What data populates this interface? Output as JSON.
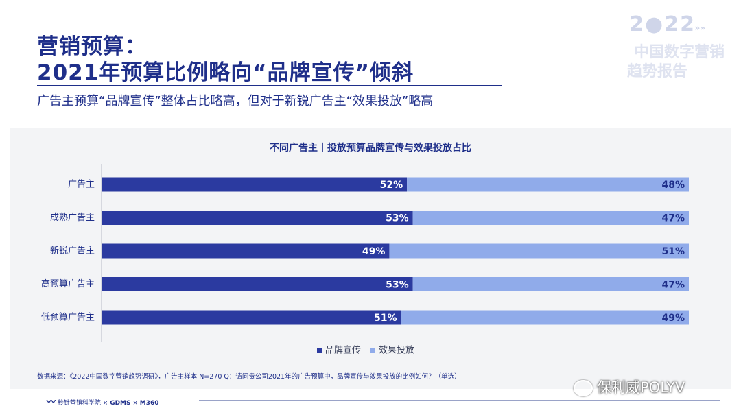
{
  "header": {
    "title_line1": "营销预算：",
    "title_line2": "2021年预算比例略向“品牌宣传”倾斜",
    "subtitle": "广告主预算“品牌宣传”整体占比略高，但对于新锐广告主“效果投放”略高"
  },
  "brand": {
    "year": "2●22",
    "arrow": "»»",
    "line1": "中国数字营销",
    "line2": "趋势报告"
  },
  "colors": {
    "brand": "#2b3aa0",
    "effect": "#90abea",
    "text": "#1f2f8a"
  },
  "chart_data": {
    "type": "bar",
    "title": "不同广告主丨投放预算品牌宣传与效果投放占比",
    "categories": [
      "广告主",
      "成熟广告主",
      "新锐广告主",
      "高预算广告主",
      "低预算广告主"
    ],
    "series": [
      {
        "name": "品牌宣传",
        "values": [
          52,
          53,
          49,
          53,
          51
        ],
        "labels": [
          "52%",
          "53%",
          "49%",
          "53%",
          "51%"
        ]
      },
      {
        "name": "效果投放",
        "values": [
          48,
          47,
          51,
          47,
          49
        ],
        "labels": [
          "48%",
          "47%",
          "51%",
          "47%",
          "49%"
        ]
      }
    ],
    "stacked": true,
    "orientation": "horizontal",
    "xlim": [
      0,
      100
    ],
    "legend": "bottom-center"
  },
  "source": "数据来源：《2022中国数字营销趋势调研》，广告主样本 N=270    Q：请问贵公司2021年的广告预算中，品牌宣传与效果投放的比例如何？（单选）",
  "footer": {
    "logo1": "秒针营销科学院",
    "sep": "×",
    "logo2": "GDMS",
    "logo3": "M360"
  },
  "watermark": "保利威POLYV"
}
